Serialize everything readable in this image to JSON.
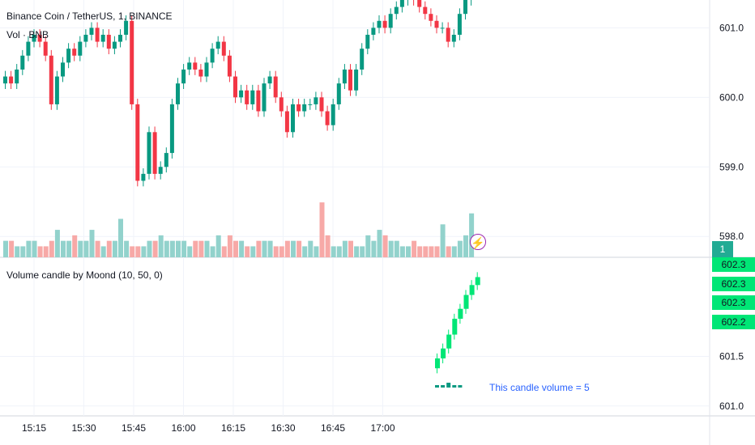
{
  "header": {
    "title": "Binance Coin / TetherUS, 1, BINANCE",
    "volume_label": "Vol · BNB",
    "indicator_label": "Volume candle by Moond (10, 50, 0)",
    "volume_note": "This candle volume = 5",
    "pane_badge": "1"
  },
  "price_tags": [
    "602.3",
    "602.3",
    "602.3",
    "602.2"
  ],
  "icons": {
    "flash": "lightning-icon"
  },
  "colors": {
    "up": "#089981",
    "down": "#f23645",
    "up_vol": "#92d2cc",
    "down_vol": "#f7a9a7",
    "ind": "#00e676",
    "note": "#2962ff"
  },
  "chart_data": [
    {
      "type": "candlestick",
      "title": "Binance Coin / TetherUS, 1, BINANCE",
      "y_ticks": [
        "601.0",
        "600.0",
        "599.0",
        "598.0"
      ],
      "ylim": [
        597.7,
        601.4
      ],
      "x_ticks": [
        "15:15",
        "15:30",
        "15:45",
        "16:00",
        "16:15",
        "16:30",
        "16:45",
        "17:00"
      ],
      "close": [
        600.3,
        600.2,
        600.4,
        600.6,
        600.8,
        600.9,
        600.8,
        600.6,
        599.9,
        600.3,
        600.5,
        600.7,
        600.6,
        600.8,
        600.9,
        601.0,
        600.8,
        600.9,
        600.7,
        600.8,
        600.9,
        601.1,
        599.9,
        598.8,
        598.9,
        599.5,
        598.9,
        599.0,
        599.2,
        599.9,
        600.2,
        600.4,
        600.5,
        600.4,
        600.3,
        600.5,
        600.7,
        600.8,
        600.6,
        600.3,
        600.0,
        600.1,
        599.9,
        600.1,
        599.8,
        600.2,
        600.3,
        600.0,
        599.8,
        599.5,
        599.9,
        599.8,
        599.9,
        599.9,
        600.0,
        599.8,
        599.6,
        599.9,
        600.2,
        600.4,
        600.1,
        600.4,
        600.7,
        600.9,
        601.0,
        601.1,
        601.0,
        601.2,
        601.3,
        601.4,
        601.5,
        601.4,
        601.3,
        601.2,
        601.1,
        601.0,
        601.0,
        600.8,
        600.9,
        601.2,
        601.4,
        601.6
      ]
    },
    {
      "type": "bar",
      "title": "Vol · BNB",
      "values": [
        3,
        3,
        2,
        2,
        3,
        3,
        2,
        2,
        3,
        5,
        3,
        3,
        4,
        3,
        3,
        5,
        3,
        2,
        3,
        3,
        7,
        3,
        2,
        2,
        2,
        3,
        3,
        4,
        3,
        3,
        3,
        3,
        2,
        3,
        3,
        3,
        2,
        4,
        2,
        4,
        3,
        3,
        2,
        2,
        3,
        3,
        3,
        2,
        2,
        3,
        3,
        3,
        2,
        3,
        2,
        10,
        4,
        2,
        2,
        3,
        3,
        2,
        2,
        4,
        3,
        5,
        4,
        3,
        3,
        2,
        2,
        3,
        2,
        2,
        2,
        2,
        6,
        2,
        2,
        3,
        4,
        8
      ],
      "ylim": [
        0,
        14
      ]
    },
    {
      "type": "candlestick",
      "title": "Volume candle by Moond (10, 50, 0)",
      "y_ticks": [
        "601.0",
        "601.5"
      ],
      "ylim": [
        600.9,
        602.5
      ],
      "close": [
        601.48,
        601.58,
        601.72,
        601.88,
        601.98,
        602.12,
        602.22,
        602.3
      ],
      "volume_ticks": [
        1,
        1,
        2,
        1,
        1
      ]
    }
  ]
}
